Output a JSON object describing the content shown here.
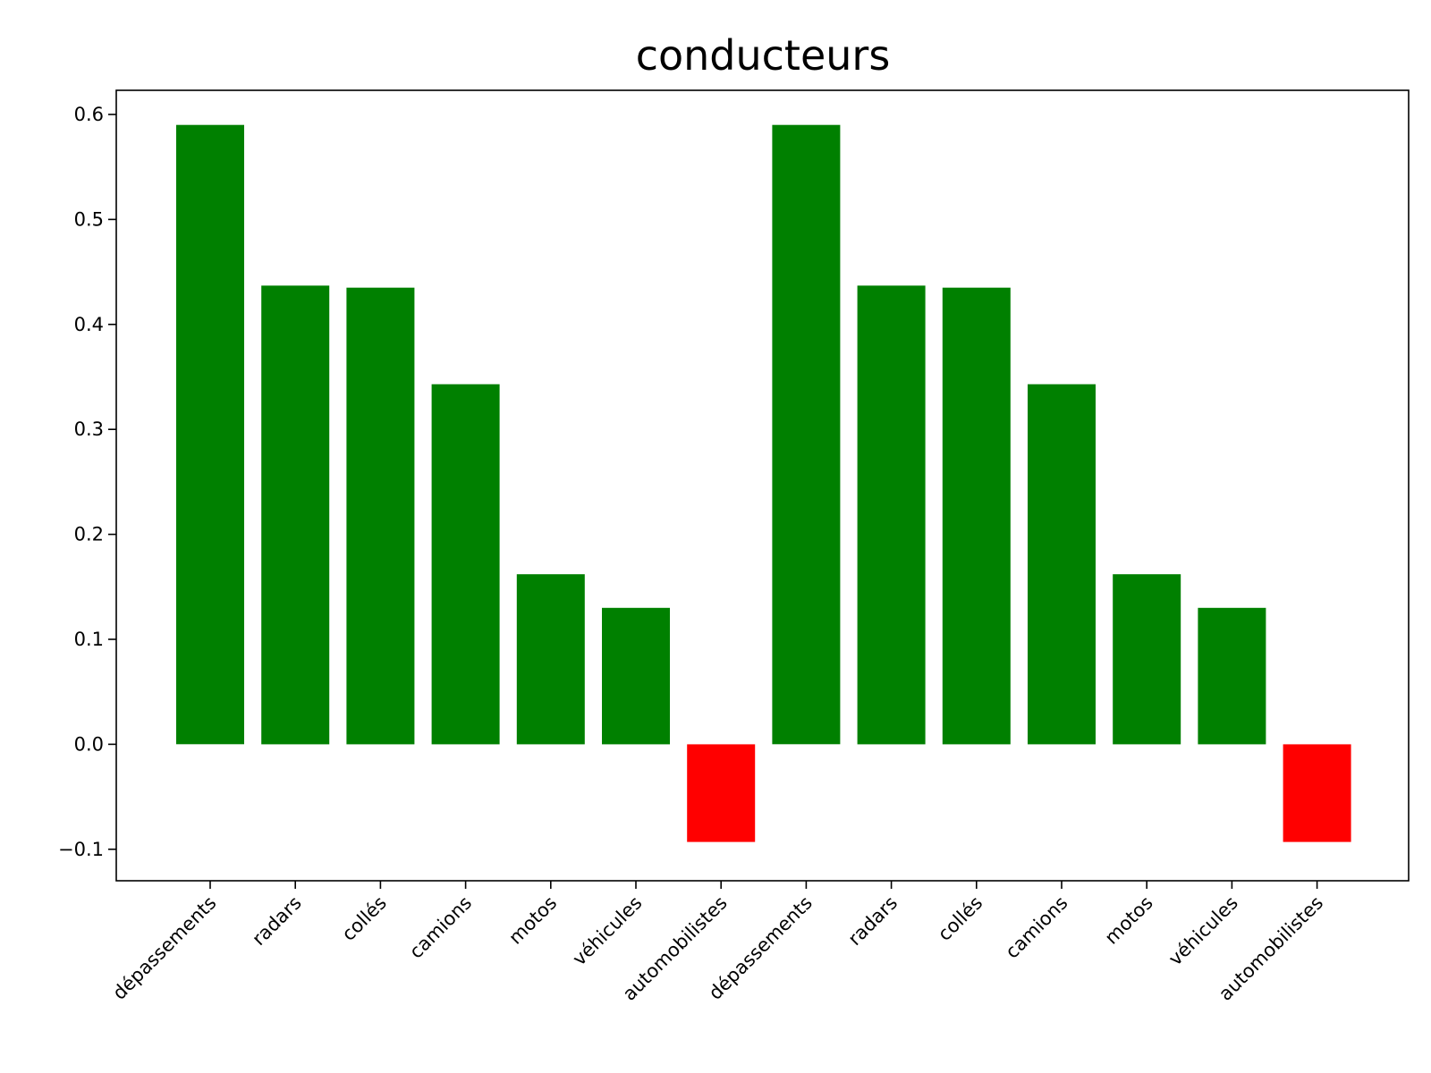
{
  "chart_data": {
    "type": "bar",
    "title": "conducteurs",
    "xlabel": "",
    "ylabel": "",
    "categories": [
      "dépassements",
      "radars",
      "collés",
      "camions",
      "motos",
      "véhicules",
      "automobilistes",
      "dépassements",
      "radars",
      "collés",
      "camions",
      "motos",
      "véhicules",
      "automobilistes"
    ],
    "values": [
      0.59,
      0.437,
      0.435,
      0.343,
      0.162,
      0.13,
      -0.093,
      0.59,
      0.437,
      0.435,
      0.343,
      0.162,
      0.13,
      -0.093
    ],
    "ylim": [
      -0.13,
      0.623
    ],
    "yticks": [
      -0.1,
      0.0,
      0.1,
      0.2,
      0.3,
      0.4,
      0.5,
      0.6
    ],
    "ytick_labels": [
      "−0.1",
      "0.0",
      "0.1",
      "0.2",
      "0.3",
      "0.4",
      "0.5",
      "0.6"
    ],
    "colors": {
      "positive": "#008000",
      "negative": "#ff0000"
    },
    "grid": false,
    "legend": "none"
  }
}
